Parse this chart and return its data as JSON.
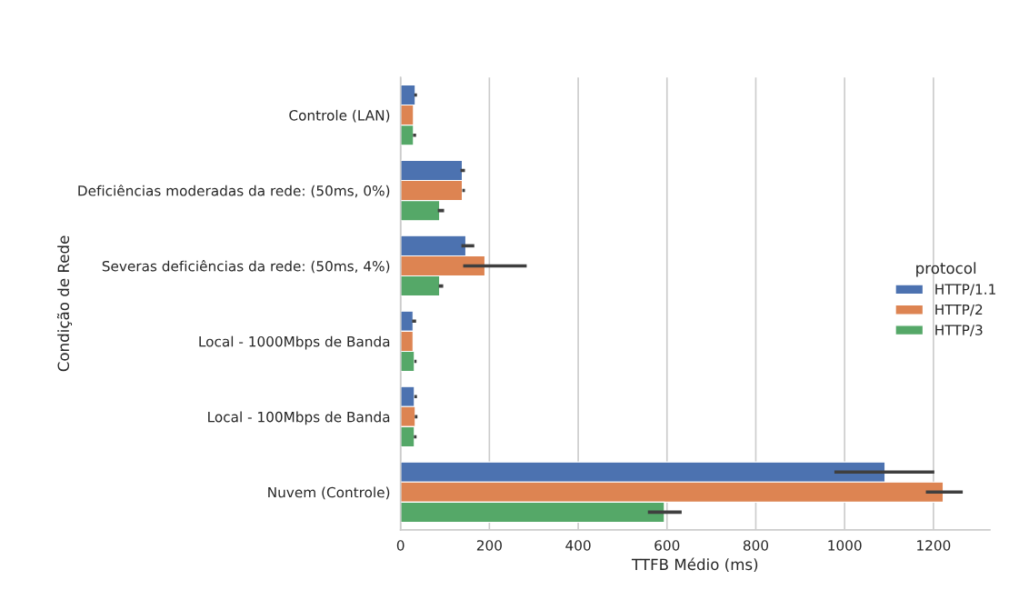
{
  "chart_data": {
    "type": "bar",
    "orientation": "horizontal",
    "xlabel": "TTFB Médio (ms)",
    "ylabel": "Condição de Rede",
    "legend_title": "protocol",
    "legend": "right",
    "grid": "x",
    "categories": [
      "Controle (LAN)",
      "Deficiências moderadas da rede: (50ms, 0%)",
      "Severas deficiências da rede: (50ms, 4%)",
      "Local - 1000Mbps de Banda",
      "Local - 100Mbps de Banda",
      "Nuvem (Controle)"
    ],
    "xlim": [
      0,
      1327
    ],
    "xticks": [
      0,
      200,
      400,
      600,
      800,
      1000,
      1200
    ],
    "series": [
      {
        "name": "HTTP/1.1",
        "color": "#4c72b0",
        "values": [
          33,
          139,
          147,
          28,
          31,
          1091
        ],
        "errors": [
          [
            31,
            37
          ],
          [
            135,
            145
          ],
          [
            137,
            166
          ],
          [
            26,
            35
          ],
          [
            31,
            37
          ],
          [
            977,
            1202
          ]
        ]
      },
      {
        "name": "HTTP/2",
        "color": "#dd8452",
        "values": [
          29,
          139,
          190,
          28,
          33,
          1222
        ],
        "errors": [
          null,
          [
            139,
            145
          ],
          [
            141,
            284
          ],
          null,
          [
            32,
            38
          ],
          [
            1183,
            1266
          ]
        ]
      },
      {
        "name": "HTTP/3",
        "color": "#55a868",
        "values": [
          29,
          88,
          88,
          31,
          31,
          594
        ],
        "errors": [
          [
            28,
            35
          ],
          [
            84,
            98
          ],
          [
            86,
            96
          ],
          [
            31,
            36
          ],
          [
            30,
            36
          ],
          [
            557,
            633
          ]
        ]
      }
    ]
  }
}
